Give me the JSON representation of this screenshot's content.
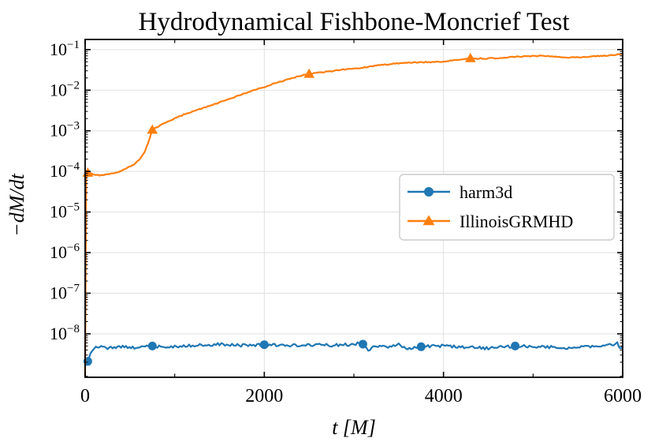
{
  "figure": {
    "background": "#ffffff"
  },
  "chart_data": {
    "type": "line",
    "title": "Hydrodynamical Fishbone-Moncrief Test",
    "xlabel": "t [M]",
    "ylabel": "−dM/dt",
    "x_axis": {
      "scale": "linear",
      "min": 0,
      "max": 6000,
      "major_ticks": [
        0,
        2000,
        4000,
        6000
      ],
      "major_tick_labels": [
        "0",
        "2000",
        "4000",
        "6000"
      ],
      "minor_ticks": [
        1000,
        3000,
        5000
      ]
    },
    "y_axis": {
      "scale": "log",
      "min_log10": -9.07,
      "max_log10": -0.751,
      "major_tick_exponents": [
        -1,
        -2,
        -3,
        -4,
        -5,
        -6,
        -7,
        -8
      ],
      "minor_ticks": "log-subdecade-2-to-9"
    },
    "grid": {
      "show": true,
      "color": "#e0e0e0"
    },
    "legend": {
      "location": "center right",
      "entries": [
        {
          "label": "harm3d",
          "color": "#1f77b4",
          "marker": "circle"
        },
        {
          "label": "IllinoisGRMHD",
          "color": "#ff7f0e",
          "marker": "triangle"
        }
      ]
    },
    "series": [
      {
        "name": "harm3d",
        "color": "#1f77b4",
        "marker": "circle",
        "line_width": 2.2,
        "noise_log10_amp": 0.035,
        "noise_from_t": 90,
        "noise_seed": 3,
        "marker_t": [
          30,
          750,
          2000,
          3100,
          3750,
          4800
        ],
        "points": [
          [
            0,
            1.6e-09
          ],
          [
            30,
            2.1e-09
          ],
          [
            60,
            3.3e-09
          ],
          [
            100,
            4.4e-09
          ],
          [
            160,
            4.8e-09
          ],
          [
            250,
            4.5e-09
          ],
          [
            400,
            4.9e-09
          ],
          [
            550,
            4.6e-09
          ],
          [
            750,
            5e-09
          ],
          [
            900,
            4.6e-09
          ],
          [
            1100,
            5e-09
          ],
          [
            1300,
            5.3e-09
          ],
          [
            1500,
            5.5e-09
          ],
          [
            1700,
            5.2e-09
          ],
          [
            2000,
            5.4e-09
          ],
          [
            2250,
            5.1e-09
          ],
          [
            2500,
            5.4e-09
          ],
          [
            2750,
            5.2e-09
          ],
          [
            3000,
            5.5e-09
          ],
          [
            3080,
            6.3e-09
          ],
          [
            3160,
            3.9e-09
          ],
          [
            3250,
            5.1e-09
          ],
          [
            3400,
            4.6e-09
          ],
          [
            3500,
            5.5e-09
          ],
          [
            3600,
            4.3e-09
          ],
          [
            3750,
            4.8e-09
          ],
          [
            4000,
            5.1e-09
          ],
          [
            4250,
            4.7e-09
          ],
          [
            4500,
            4.4e-09
          ],
          [
            4800,
            5e-09
          ],
          [
            5100,
            4.8e-09
          ],
          [
            5400,
            4.5e-09
          ],
          [
            5700,
            4.9e-09
          ],
          [
            5880,
            5.3e-09
          ],
          [
            5940,
            6.2e-09
          ],
          [
            5970,
            4.3e-09
          ],
          [
            6000,
            4.8e-09
          ]
        ]
      },
      {
        "name": "IllinoisGRMHD",
        "color": "#ff7f0e",
        "marker": "triangle",
        "line_width": 2.2,
        "noise_log10_amp": 0.012,
        "noise_from_t": 40,
        "noise_seed": 7,
        "marker_t": [
          30,
          750,
          2500,
          4300
        ],
        "points": [
          [
            0,
            9e-10
          ],
          [
            12,
            9.5e-05
          ],
          [
            40,
            9e-05
          ],
          [
            90,
            8.6e-05
          ],
          [
            160,
            8e-05
          ],
          [
            250,
            8.4e-05
          ],
          [
            350,
            9.4e-05
          ],
          [
            450,
            0.000115
          ],
          [
            550,
            0.00015
          ],
          [
            620,
            0.00021
          ],
          [
            665,
            0.0003
          ],
          [
            705,
            0.00052
          ],
          [
            750,
            0.00105
          ],
          [
            820,
            0.0013
          ],
          [
            900,
            0.0016
          ],
          [
            1000,
            0.002
          ],
          [
            1100,
            0.0025
          ],
          [
            1200,
            0.003
          ],
          [
            1350,
            0.0038
          ],
          [
            1500,
            0.005
          ],
          [
            1650,
            0.0066
          ],
          [
            1800,
            0.0086
          ],
          [
            1900,
            0.0104
          ],
          [
            2000,
            0.012
          ],
          [
            2100,
            0.0145
          ],
          [
            2250,
            0.018
          ],
          [
            2400,
            0.0225
          ],
          [
            2500,
            0.025
          ],
          [
            2600,
            0.027
          ],
          [
            2750,
            0.0295
          ],
          [
            2900,
            0.0325
          ],
          [
            3000,
            0.034
          ],
          [
            3100,
            0.036
          ],
          [
            3250,
            0.04
          ],
          [
            3400,
            0.044
          ],
          [
            3500,
            0.046
          ],
          [
            3650,
            0.048
          ],
          [
            3800,
            0.049
          ],
          [
            3950,
            0.05
          ],
          [
            4100,
            0.054
          ],
          [
            4200,
            0.058
          ],
          [
            4300,
            0.061
          ],
          [
            4450,
            0.06
          ],
          [
            4600,
            0.062
          ],
          [
            4750,
            0.065
          ],
          [
            4950,
            0.069
          ],
          [
            5150,
            0.07
          ],
          [
            5350,
            0.063
          ],
          [
            5500,
            0.065
          ],
          [
            5700,
            0.069
          ],
          [
            5850,
            0.072
          ],
          [
            5950,
            0.076
          ],
          [
            6000,
            0.078
          ]
        ]
      }
    ]
  }
}
